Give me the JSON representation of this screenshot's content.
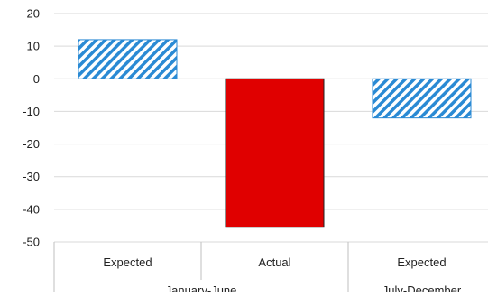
{
  "chart_data": {
    "type": "bar",
    "categories": [
      "Expected",
      "Actual",
      "Expected"
    ],
    "groups": [
      {
        "label": "January-June",
        "span": [
          0,
          1
        ]
      },
      {
        "label": "July-December",
        "span": [
          2,
          2
        ]
      }
    ],
    "values": [
      12,
      -45.5,
      -12
    ],
    "bar_styles": [
      "hatched",
      "solid",
      "hatched"
    ],
    "ylim": [
      -50,
      20
    ],
    "yticks": [
      20,
      10,
      0,
      -10,
      -20,
      -30,
      -40,
      -50
    ],
    "grid": true,
    "legend": "none",
    "title": "",
    "xlabel": "",
    "ylabel": ""
  },
  "colors": {
    "hatch_blue": "#2a8ad4",
    "hatch_light": "#ffffff",
    "actual_red": "#e00000",
    "grid": "#d9d9d9",
    "axis": "#bfbfbf"
  }
}
